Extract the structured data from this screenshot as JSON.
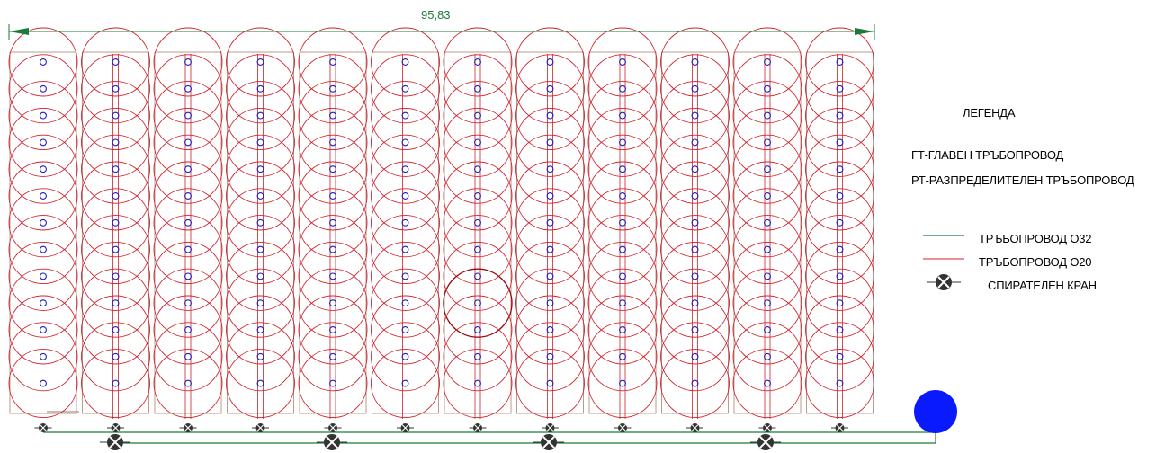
{
  "dimension": {
    "label": "95,83"
  },
  "legend": {
    "title": "ЛЕГЕНДА",
    "gt": "ГТ-ГЛАВЕН ТРЪБОПРОВОД",
    "rt": "РТ-РАЗПРЕДЕЛИТЕЛЕН ТРЪБОПРОВОД",
    "pipe32": "ТРЪБОПРОВОД О32",
    "pipe20": "ТРЪБОПРОВОД О20",
    "valve": "СПИРАТЕЛЕН КРАН"
  },
  "colors": {
    "main_pipe": "#1a7a3a",
    "lateral_pipe": "#d0202a",
    "sprinkler_coverage": "#d0202a",
    "sprinkler_head": "#2020c0",
    "pump": "#0a1aff",
    "valve": "#333333",
    "bed_outline": "#a07060"
  },
  "layout": {
    "sprinkler_columns": 12,
    "sprinkler_rows": 13
  }
}
